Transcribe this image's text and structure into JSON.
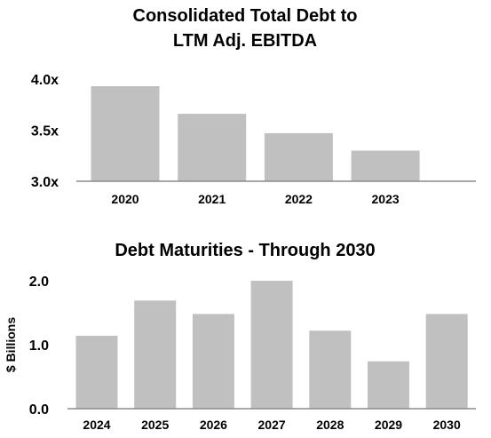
{
  "chart_data": [
    {
      "type": "bar",
      "title_lines": [
        "Consolidated Total Debt to",
        "LTM Adj. EBITDA"
      ],
      "categories": [
        "2020",
        "2021",
        "2022",
        "2023"
      ],
      "values": [
        3.93,
        3.66,
        3.47,
        3.3
      ],
      "ylim": [
        3.0,
        4.0
      ],
      "yticks": [
        "3.0x",
        "3.5x",
        "4.0x"
      ],
      "ytick_values": [
        3.0,
        3.5,
        4.0
      ],
      "xlabel": "",
      "ylabel": "",
      "grid": false,
      "bar_color": "#c0c0c0",
      "axis_color": "#8c8c8c"
    },
    {
      "type": "bar",
      "title_lines": [
        "Debt Maturities - Through 2030"
      ],
      "categories": [
        "2024",
        "2025",
        "2026",
        "2027",
        "2028",
        "2029",
        "2030"
      ],
      "values": [
        1.14,
        1.69,
        1.48,
        2.0,
        1.22,
        0.74,
        1.48
      ],
      "ylim": [
        0.0,
        2.0
      ],
      "yticks": [
        "0.0",
        "1.0",
        "2.0"
      ],
      "ytick_values": [
        0.0,
        1.0,
        2.0
      ],
      "xlabel": "",
      "ylabel": "$ Billions",
      "grid": false,
      "bar_color": "#c0c0c0",
      "axis_color": "#8c8c8c"
    }
  ]
}
